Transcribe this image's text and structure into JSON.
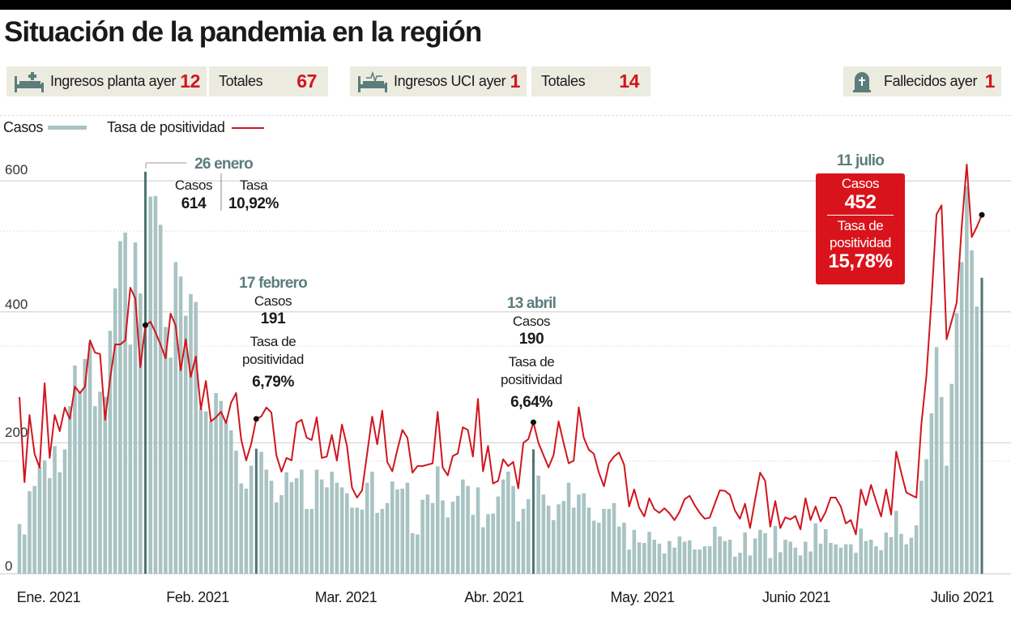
{
  "title": "Situación de la pandemia en la región",
  "stats": [
    {
      "icon": "hospital-bed-icon",
      "label": "Ingresos planta ayer",
      "value": "12"
    },
    {
      "label": "Totales",
      "value": "67"
    },
    {
      "icon": "icu-bed-icon",
      "label": "Ingresos UCI ayer",
      "value": "1"
    },
    {
      "label": "Totales",
      "value": "14"
    },
    {
      "icon": "tombstone-icon",
      "label": "Fallecidos ayer",
      "value": "1"
    }
  ],
  "colors": {
    "cases": "#a9c3c3",
    "cases_highlight": "#4f7472",
    "rate": "#d0161e",
    "annotation_date": "#5b7d7b",
    "highlight_box": "#d9131b",
    "stat_bg": "#ecebe0"
  },
  "annotations": [
    {
      "x": "2021-01-26",
      "date": "26 enero",
      "cases_label": "Casos",
      "cases": "614",
      "rate_label": "Tasa",
      "rate": "10,92%"
    },
    {
      "x": "2021-02-17",
      "date": "17 febrero",
      "cases_label": "Casos",
      "cases": "191",
      "rate_label_1": "Tasa de",
      "rate_label_2": "positividad",
      "rate": "6,79%"
    },
    {
      "x": "2021-04-13",
      "date": "13 abril",
      "cases_label": "Casos",
      "cases": "190",
      "rate_label_1": "Tasa de",
      "rate_label_2": "positividad",
      "rate": "6,64%"
    },
    {
      "x": "2021-07-11",
      "date": "11 julio",
      "cases_label": "Casos",
      "cases": "452",
      "rate_label_1": "Tasa de",
      "rate_label_2": "positividad",
      "rate": "15,78%"
    }
  ],
  "chart_data": {
    "type": "bar",
    "grid": true,
    "legend": "top-left",
    "y_ticks": [
      "0",
      "200",
      "400",
      "600"
    ],
    "ylim": [
      0,
      600
    ],
    "x_tick_labels": [
      "Ene. 2021",
      "Feb. 2021",
      "Mar. 2021",
      "Abr. 2021",
      "May. 2021",
      "Junio 2021",
      "Julio 2021"
    ],
    "x": [
      "2021-01-01",
      "2021-01-02",
      "2021-01-03",
      "2021-01-04",
      "2021-01-05",
      "2021-01-06",
      "2021-01-07",
      "2021-01-08",
      "2021-01-09",
      "2021-01-10",
      "2021-01-11",
      "2021-01-12",
      "2021-01-13",
      "2021-01-14",
      "2021-01-15",
      "2021-01-16",
      "2021-01-17",
      "2021-01-18",
      "2021-01-19",
      "2021-01-20",
      "2021-01-21",
      "2021-01-22",
      "2021-01-23",
      "2021-01-24",
      "2021-01-25",
      "2021-01-26",
      "2021-01-27",
      "2021-01-28",
      "2021-01-29",
      "2021-01-30",
      "2021-01-31",
      "2021-02-01",
      "2021-02-02",
      "2021-02-03",
      "2021-02-04",
      "2021-02-05",
      "2021-02-06",
      "2021-02-07",
      "2021-02-08",
      "2021-02-09",
      "2021-02-10",
      "2021-02-11",
      "2021-02-12",
      "2021-02-13",
      "2021-02-14",
      "2021-02-15",
      "2021-02-16",
      "2021-02-17",
      "2021-02-18",
      "2021-02-19",
      "2021-02-20",
      "2021-02-21",
      "2021-02-22",
      "2021-02-23",
      "2021-02-24",
      "2021-02-25",
      "2021-02-26",
      "2021-02-27",
      "2021-02-28",
      "2021-03-01",
      "2021-03-02",
      "2021-03-03",
      "2021-03-04",
      "2021-03-05",
      "2021-03-06",
      "2021-03-07",
      "2021-03-08",
      "2021-03-09",
      "2021-03-10",
      "2021-03-11",
      "2021-03-12",
      "2021-03-13",
      "2021-03-14",
      "2021-03-15",
      "2021-03-16",
      "2021-03-17",
      "2021-03-18",
      "2021-03-19",
      "2021-03-20",
      "2021-03-21",
      "2021-03-22",
      "2021-03-23",
      "2021-03-24",
      "2021-03-25",
      "2021-03-26",
      "2021-03-27",
      "2021-03-28",
      "2021-03-29",
      "2021-03-30",
      "2021-03-31",
      "2021-04-01",
      "2021-04-02",
      "2021-04-03",
      "2021-04-04",
      "2021-04-05",
      "2021-04-06",
      "2021-04-07",
      "2021-04-08",
      "2021-04-09",
      "2021-04-10",
      "2021-04-11",
      "2021-04-12",
      "2021-04-13",
      "2021-04-14",
      "2021-04-15",
      "2021-04-16",
      "2021-04-17",
      "2021-04-18",
      "2021-04-19",
      "2021-04-20",
      "2021-04-21",
      "2021-04-22",
      "2021-04-23",
      "2021-04-24",
      "2021-04-25",
      "2021-04-26",
      "2021-04-27",
      "2021-04-28",
      "2021-04-29",
      "2021-04-30",
      "2021-05-01",
      "2021-05-02",
      "2021-05-03",
      "2021-05-04",
      "2021-05-05",
      "2021-05-06",
      "2021-05-07",
      "2021-05-08",
      "2021-05-09",
      "2021-05-10",
      "2021-05-11",
      "2021-05-12",
      "2021-05-13",
      "2021-05-14",
      "2021-05-15",
      "2021-05-16",
      "2021-05-17",
      "2021-05-18",
      "2021-05-19",
      "2021-05-20",
      "2021-05-21",
      "2021-05-22",
      "2021-05-23",
      "2021-05-24",
      "2021-05-25",
      "2021-05-26",
      "2021-05-27",
      "2021-05-28",
      "2021-05-29",
      "2021-05-30",
      "2021-05-31",
      "2021-06-01",
      "2021-06-02",
      "2021-06-03",
      "2021-06-04",
      "2021-06-05",
      "2021-06-06",
      "2021-06-07",
      "2021-06-08",
      "2021-06-09",
      "2021-06-10",
      "2021-06-11",
      "2021-06-12",
      "2021-06-13",
      "2021-06-14",
      "2021-06-15",
      "2021-06-16",
      "2021-06-17",
      "2021-06-18",
      "2021-06-19",
      "2021-06-20",
      "2021-06-21",
      "2021-06-22",
      "2021-06-23",
      "2021-06-24",
      "2021-06-25",
      "2021-06-26",
      "2021-06-27",
      "2021-06-28",
      "2021-06-29",
      "2021-06-30",
      "2021-07-01",
      "2021-07-02",
      "2021-07-03",
      "2021-07-04",
      "2021-07-05",
      "2021-07-06",
      "2021-07-07",
      "2021-07-08",
      "2021-07-09",
      "2021-07-10",
      "2021-07-11"
    ],
    "series": [
      {
        "name": "Casos",
        "type": "bar",
        "values": [
          76,
          60,
          126,
          134,
          163,
          173,
          146,
          195,
          155,
          190,
          256,
          318,
          278,
          328,
          353,
          256,
          278,
          270,
          371,
          436,
          508,
          521,
          350,
          506,
          428,
          614,
          576,
          577,
          533,
          377,
          330,
          476,
          454,
          394,
          427,
          415,
          252,
          248,
          233,
          276,
          264,
          233,
          219,
          188,
          138,
          130,
          165,
          191,
          186,
          159,
          142,
          109,
          120,
          155,
          140,
          146,
          159,
          99,
          99,
          159,
          144,
          132,
          156,
          139,
          132,
          123,
          101,
          101,
          98,
          139,
          156,
          93,
          99,
          108,
          141,
          129,
          130,
          139,
          62,
          60,
          113,
          121,
          108,
          164,
          112,
          86,
          110,
          119,
          144,
          134,
          90,
          132,
          71,
          91,
          92,
          118,
          144,
          156,
          134,
          80,
          99,
          114,
          190,
          150,
          121,
          104,
          82,
          106,
          111,
          139,
          101,
          121,
          123,
          101,
          81,
          78,
          99,
          99,
          108,
          72,
          78,
          37,
          67,
          48,
          47,
          64,
          52,
          46,
          31,
          50,
          40,
          57,
          49,
          51,
          37,
          37,
          42,
          42,
          72,
          57,
          50,
          52,
          26,
          32,
          63,
          28,
          54,
          67,
          62,
          24,
          73,
          33,
          52,
          49,
          40,
          28,
          49,
          34,
          77,
          46,
          68,
          47,
          45,
          40,
          45,
          45,
          32,
          69,
          50,
          52,
          42,
          36,
          63,
          56,
          96,
          61,
          45,
          55,
          74,
          142,
          175,
          245,
          346,
          270,
          165,
          290,
          398,
          476,
          592,
          494,
          408,
          452
        ]
      },
      {
        "name": "Tasa de positividad",
        "type": "line",
        "unit": "%",
        "values": [
          7.75,
          4.0,
          6.96,
          5.25,
          4.64,
          8.36,
          5.07,
          6.96,
          6.25,
          7.29,
          6.79,
          8.21,
          7.93,
          8.21,
          10.25,
          9.71,
          9.65,
          6.75,
          8.57,
          10.07,
          10.07,
          10.25,
          12.57,
          12.1,
          9.07,
          10.92,
          11.07,
          10.6,
          10.07,
          9.46,
          11.43,
          10.9,
          8.93,
          10.3,
          8.64,
          9.54,
          7.21,
          8.46,
          6.68,
          6.86,
          7.1,
          6.61,
          7.5,
          7.93,
          5.89,
          4.96,
          5.7,
          6.79,
          6.9,
          7.29,
          7.07,
          5.18,
          4.46,
          5.07,
          4.96,
          6.61,
          6.75,
          5.96,
          5.86,
          6.86,
          5.07,
          5.13,
          6.08,
          4.95,
          6.54,
          5.6,
          3.76,
          3.32,
          3.64,
          5.25,
          6.89,
          5.67,
          7.15,
          4.89,
          4.48,
          5.43,
          6.3,
          5.96,
          4.42,
          4.71,
          4.71,
          4.77,
          4.83,
          7.1,
          4.65,
          4.3,
          5.15,
          5.27,
          6.42,
          6.3,
          5.13,
          7.67,
          4.48,
          5.6,
          3.94,
          4.06,
          5.01,
          4.71,
          4.89,
          3.73,
          5.73,
          5.9,
          6.64,
          5.73,
          5.19,
          4.65,
          5.19,
          6.68,
          5.73,
          4.83,
          4.95,
          7.3,
          5.96,
          5.43,
          5.25,
          4.42,
          3.82,
          4.83,
          5.13,
          5.31,
          4.77,
          2.93,
          3.68,
          2.87,
          2.49,
          3.29,
          2.81,
          2.65,
          2.85,
          2.63,
          2.33,
          2.69,
          3.25,
          3.4,
          2.99,
          2.65,
          2.39,
          2.44,
          3.05,
          3.64,
          3.62,
          3.44,
          2.75,
          2.39,
          3.05,
          1.98,
          3.23,
          4.42,
          4.06,
          2.04,
          3.17,
          1.98,
          2.45,
          2.36,
          2.51,
          1.92,
          3.29,
          2.33,
          2.93,
          2.27,
          2.69,
          3.32,
          3.32,
          2.93,
          2.18,
          2.33,
          1.7,
          3.68,
          2.99,
          3.88,
          3.17,
          2.49,
          3.68,
          2.57,
          5.35,
          4.42,
          3.55,
          3.43,
          3.32,
          6.56,
          8.7,
          12.0,
          15.8,
          16.2,
          10.3,
          11.1,
          11.9,
          15.25,
          18.0,
          14.8,
          15.25,
          15.78
        ]
      }
    ]
  }
}
